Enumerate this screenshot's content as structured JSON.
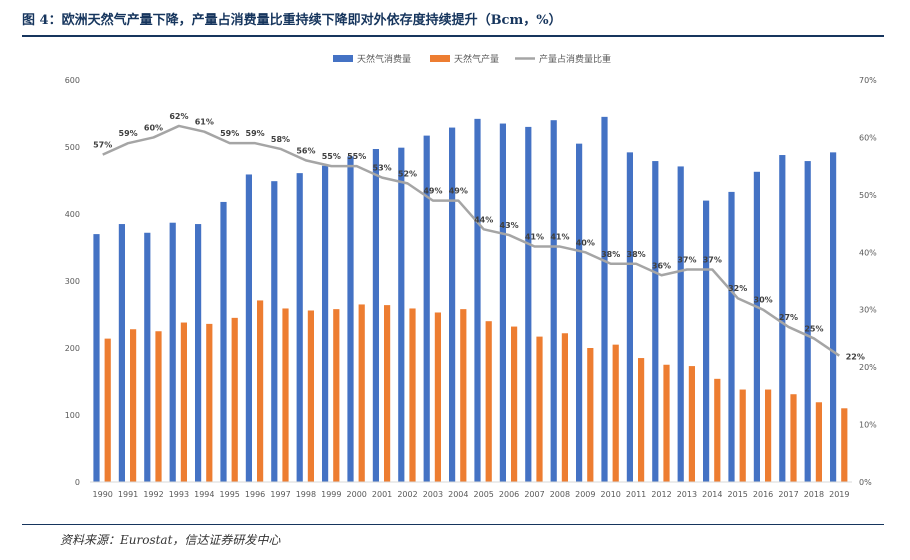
{
  "title": "图 4：欧洲天然气产量下降，产量占消费量比重持续下降即对外依存度持续提升（Bcm，%）",
  "source": "资料来源：Eurostat，信达证券研发中心",
  "colors": {
    "consumption": "#4472c4",
    "production": "#ed7d31",
    "ratio": "#a5a5a5",
    "title": "#16355d"
  },
  "chart_data": {
    "type": "bar",
    "title": "",
    "legend_position": "top",
    "categories": [
      "1990",
      "1991",
      "1992",
      "1993",
      "1994",
      "1995",
      "1996",
      "1997",
      "1998",
      "1999",
      "2000",
      "2001",
      "2002",
      "2003",
      "2004",
      "2005",
      "2006",
      "2007",
      "2008",
      "2009",
      "2010",
      "2011",
      "2012",
      "2013",
      "2014",
      "2015",
      "2016",
      "2017",
      "2018",
      "2019"
    ],
    "series": [
      {
        "name": "天然气消费量",
        "type": "bar",
        "axis": "left",
        "values": [
          370,
          385,
          372,
          387,
          385,
          418,
          459,
          449,
          461,
          472,
          486,
          497,
          499,
          517,
          529,
          542,
          535,
          530,
          540,
          505,
          545,
          492,
          479,
          471,
          420,
          433,
          463,
          488,
          479,
          492
        ]
      },
      {
        "name": "天然气产量",
        "type": "bar",
        "axis": "left",
        "values": [
          214,
          228,
          225,
          238,
          236,
          245,
          271,
          259,
          256,
          258,
          265,
          264,
          259,
          253,
          258,
          240,
          232,
          217,
          222,
          200,
          205,
          185,
          175,
          173,
          154,
          138,
          138,
          131,
          119,
          110
        ]
      },
      {
        "name": "产量占消费量比重",
        "type": "line",
        "axis": "right",
        "unit": "%",
        "values": [
          57,
          59,
          60,
          62,
          61,
          59,
          59,
          58,
          56,
          55,
          55,
          53,
          52,
          49,
          49,
          44,
          43,
          41,
          41,
          40,
          38,
          38,
          36,
          37,
          37,
          32,
          30,
          27,
          25,
          22
        ]
      }
    ],
    "ylim_left": [
      0,
      600
    ],
    "yticks_left": [
      "0",
      "100",
      "200",
      "300",
      "400",
      "500",
      "600"
    ],
    "ylim_right": [
      0,
      70
    ],
    "yticks_right": [
      "0%",
      "10%",
      "20%",
      "30%",
      "40%",
      "50%",
      "60%",
      "70%"
    ],
    "grid": false
  }
}
